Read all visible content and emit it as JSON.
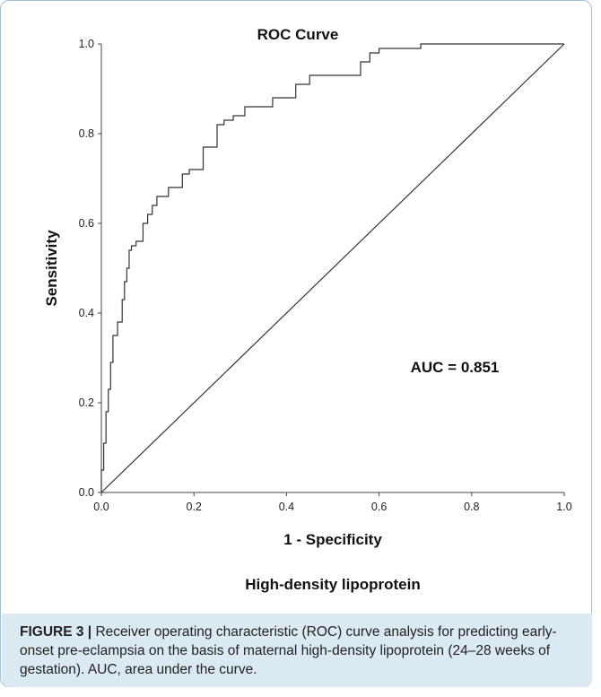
{
  "chart_data": {
    "type": "line",
    "title": "ROC Curve",
    "xlabel": "1 - Specificity",
    "ylabel": "Sensitivity",
    "subtitle": "High-density lipoprotein",
    "annotation": "AUC = 0.851",
    "xlim": [
      0,
      1
    ],
    "ylim": [
      0,
      1
    ],
    "x_ticks": [
      "0.0",
      "0.2",
      "0.4",
      "0.6",
      "0.8",
      "1.0"
    ],
    "y_ticks": [
      "0.0",
      "0.2",
      "0.4",
      "0.6",
      "0.8",
      "1.0"
    ],
    "grid": false,
    "line_color": "#333333",
    "series": [
      {
        "x": [
          0.0,
          0.0,
          0.005,
          0.005,
          0.01,
          0.01,
          0.015,
          0.015,
          0.02,
          0.02,
          0.025,
          0.025,
          0.035,
          0.035,
          0.045,
          0.045,
          0.05,
          0.05,
          0.055,
          0.055,
          0.06,
          0.06,
          0.065,
          0.065,
          0.075,
          0.075,
          0.09,
          0.09,
          0.1,
          0.1,
          0.11,
          0.11,
          0.12,
          0.12,
          0.145,
          0.145,
          0.175,
          0.175,
          0.19,
          0.19,
          0.22,
          0.22,
          0.25,
          0.25,
          0.265,
          0.265,
          0.285,
          0.285,
          0.31,
          0.31,
          0.34,
          0.34,
          0.37,
          0.37,
          0.42,
          0.42,
          0.45,
          0.45,
          0.48,
          0.48,
          0.56,
          0.56,
          0.58,
          0.58,
          0.59,
          0.59,
          0.6,
          0.6,
          0.69,
          0.69,
          0.72,
          0.72,
          1.0
        ],
        "y": [
          0.0,
          0.05,
          0.05,
          0.11,
          0.11,
          0.18,
          0.18,
          0.23,
          0.23,
          0.29,
          0.29,
          0.35,
          0.35,
          0.38,
          0.38,
          0.43,
          0.43,
          0.47,
          0.47,
          0.5,
          0.5,
          0.54,
          0.54,
          0.55,
          0.55,
          0.56,
          0.56,
          0.6,
          0.6,
          0.62,
          0.62,
          0.64,
          0.64,
          0.66,
          0.66,
          0.68,
          0.68,
          0.71,
          0.71,
          0.72,
          0.72,
          0.77,
          0.77,
          0.82,
          0.82,
          0.83,
          0.83,
          0.84,
          0.84,
          0.86,
          0.86,
          0.86,
          0.86,
          0.88,
          0.88,
          0.91,
          0.91,
          0.93,
          0.93,
          0.93,
          0.93,
          0.96,
          0.96,
          0.98,
          0.98,
          0.98,
          0.98,
          0.99,
          0.99,
          1.0,
          1.0,
          1.0,
          1.0
        ]
      },
      {
        "x": [
          0,
          1
        ],
        "y": [
          0,
          1
        ]
      }
    ]
  },
  "caption": {
    "label": "FIGURE 3 |",
    "text": " Receiver operating characteristic (ROC) curve analysis for predicting early-onset pre-eclampsia on the basis of maternal high-density lipoprotein (24–28 weeks of gestation). AUC, area under the curve."
  }
}
